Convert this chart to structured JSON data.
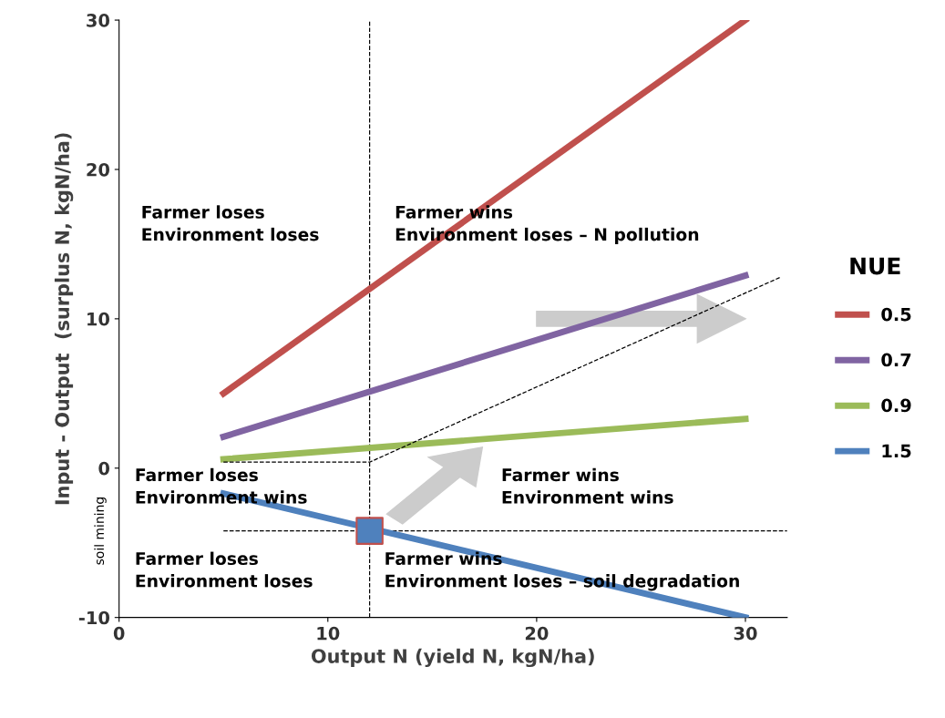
{
  "chart_data": {
    "type": "line",
    "xlabel": "Output N (yield N, kgN/ha)",
    "ylabel": "Input - Output  (surplus N, kgN/ha)",
    "legend_title": "NUE",
    "legend": "right",
    "grid": false,
    "marker": "none",
    "line_style": "solid",
    "xlim": [
      0,
      32
    ],
    "xticks": [
      0,
      10,
      20,
      30
    ],
    "ylim": [
      -10,
      30
    ],
    "yticks": [
      -10,
      0,
      10,
      20,
      30
    ],
    "series": [
      {
        "name": "0.5",
        "color": "#c0504d",
        "x": [
          5,
          30
        ],
        "values": [
          5,
          30
        ]
      },
      {
        "name": "0.7",
        "color": "#8064a2",
        "x": [
          5,
          30
        ],
        "values": [
          2.1,
          12.9
        ]
      },
      {
        "name": "0.9",
        "color": "#9bbb59",
        "x": [
          5,
          30
        ],
        "values": [
          0.6,
          3.3
        ]
      },
      {
        "name": "1.5",
        "color": "#4f81bd",
        "x": [
          5,
          30
        ],
        "values": [
          -1.7,
          -10
        ]
      },
      {
        "type": "line",
        "line_style": "dashed",
        "color": "#000000",
        "x": [
          5,
          12,
          31.7
        ],
        "values": [
          0.4,
          0.4,
          12.8
        ]
      },
      {
        "type": "scatter",
        "marker": "square",
        "color": "#4f81bd",
        "x": [
          12
        ],
        "values": [
          -4.2
        ]
      }
    ],
    "ref_lines": [
      {
        "axis": "x",
        "value": 12,
        "line_style": "dashed",
        "color": "#000000"
      },
      {
        "axis": "y",
        "value": -4.2,
        "line_style": "dashed",
        "color": "#000000"
      }
    ],
    "annotations": [
      "Farmer loses\nEnvironment loses",
      "Farmer wins\nEnvironment loses – N pollution",
      "Farmer loses\nEnvironment wins",
      "Farmer wins\nEnvironment wins",
      "Farmer loses\nEnvironment loses",
      "Farmer wins\nEnvironment loses – soil degradation",
      "soil mining"
    ]
  }
}
